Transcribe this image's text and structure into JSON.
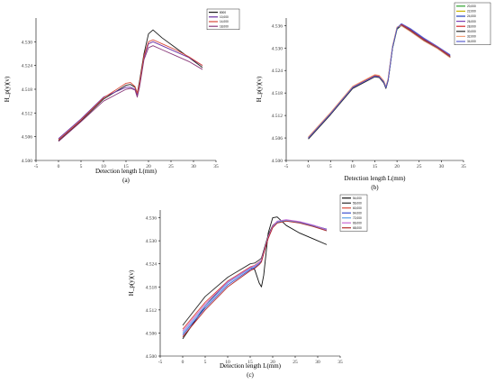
{
  "chart_data": [
    {
      "type": "line",
      "caption": "(a)",
      "xlabel": "Detection length L(mm)",
      "ylabel": "H_p(y)(v)",
      "xlim": [
        -5,
        35
      ],
      "ylim": [
        4.5,
        4.536
      ],
      "xticks": [
        "-5",
        "0",
        "5",
        "10",
        "15",
        "20",
        "25",
        "30",
        "35"
      ],
      "yticks": [
        "4.500",
        "4.506",
        "4.512",
        "4.518",
        "4.524",
        "4.530"
      ],
      "series": [
        {
          "name": "8000",
          "color": "#1a1a1a",
          "x": [
            0,
            5,
            10,
            15,
            16,
            17,
            17.5,
            18,
            19,
            20,
            21,
            23,
            26,
            29,
            32
          ],
          "y": [
            4.505,
            4.51,
            4.5155,
            4.519,
            4.5192,
            4.5185,
            4.517,
            4.52,
            4.527,
            4.532,
            4.533,
            4.531,
            4.5285,
            4.526,
            4.5235
          ]
        },
        {
          "name": "10,000",
          "color": "#6b2fa3",
          "x": [
            0,
            5,
            10,
            15,
            16,
            17,
            17.5,
            18,
            19,
            20,
            21,
            23,
            26,
            29,
            32
          ],
          "y": [
            4.5055,
            4.5105,
            4.516,
            4.5185,
            4.5185,
            4.518,
            4.5165,
            4.519,
            4.526,
            4.5295,
            4.53,
            4.529,
            4.5275,
            4.526,
            4.524
          ]
        },
        {
          "name": "14,000",
          "color": "#d94a3a",
          "x": [
            0,
            5,
            10,
            15,
            16,
            17,
            17.5,
            18,
            19,
            20,
            21,
            23,
            26,
            29,
            32
          ],
          "y": [
            4.5052,
            4.5102,
            4.5158,
            4.5195,
            4.5197,
            4.5187,
            4.517,
            4.5195,
            4.5265,
            4.53,
            4.5305,
            4.5295,
            4.528,
            4.5262,
            4.524
          ]
        },
        {
          "name": "18,000",
          "color": "#8a3a7a",
          "x": [
            0,
            5,
            10,
            15,
            16,
            17,
            17.5,
            18,
            19,
            20,
            21,
            23,
            26,
            29,
            32
          ],
          "y": [
            4.5048,
            4.5098,
            4.515,
            4.518,
            4.5182,
            4.5178,
            4.516,
            4.5185,
            4.5255,
            4.5285,
            4.529,
            4.528,
            4.5265,
            4.525,
            4.523
          ]
        }
      ]
    },
    {
      "type": "line",
      "caption": "(b)",
      "xlabel": "Detection length L(mm)",
      "ylabel": "H_p(y)(v)",
      "xlim": [
        -5,
        35
      ],
      "ylim": [
        4.5,
        4.538
      ],
      "xticks": [
        "-5",
        "0",
        "5",
        "10",
        "15",
        "20",
        "25",
        "30",
        "35"
      ],
      "yticks": [
        "4.500",
        "4.506",
        "4.512",
        "4.518",
        "4.524",
        "4.530",
        "4.536"
      ],
      "series": [
        {
          "name": "20,000",
          "color": "#2ca02c",
          "x": [
            0,
            5,
            10,
            15,
            16,
            17,
            17.5,
            18,
            19,
            20,
            21,
            23,
            26,
            29,
            32
          ],
          "y": [
            4.506,
            4.5125,
            4.5195,
            4.5225,
            4.5223,
            4.521,
            4.5195,
            4.5215,
            4.53,
            4.535,
            4.536,
            4.5345,
            4.532,
            4.53,
            4.5275
          ]
        },
        {
          "name": "22,000",
          "color": "#c8b400",
          "x": [
            0,
            5,
            10,
            15,
            16,
            17,
            17.5,
            18,
            19,
            20,
            21,
            23,
            26,
            29,
            32
          ],
          "y": [
            4.5062,
            4.5127,
            4.5197,
            4.5228,
            4.5226,
            4.5212,
            4.5197,
            4.5218,
            4.5305,
            4.5355,
            4.5362,
            4.5347,
            4.5322,
            4.5302,
            4.5277
          ]
        },
        {
          "name": "24,000",
          "color": "#1f3fbf",
          "x": [
            0,
            5,
            10,
            15,
            16,
            17,
            17.5,
            18,
            19,
            20,
            21,
            23,
            26,
            29,
            32
          ],
          "y": [
            4.5058,
            4.5123,
            4.5193,
            4.5224,
            4.5222,
            4.5208,
            4.5193,
            4.5214,
            4.5302,
            4.5352,
            4.5364,
            4.535,
            4.5325,
            4.5303,
            4.528
          ]
        },
        {
          "name": "26,000",
          "color": "#7b3fb5",
          "x": [
            0,
            5,
            10,
            15,
            16,
            17,
            17.5,
            18,
            19,
            20,
            21,
            23,
            26,
            29,
            32
          ],
          "y": [
            4.5059,
            4.5124,
            4.5194,
            4.5226,
            4.5224,
            4.5209,
            4.5194,
            4.5216,
            4.5303,
            4.5353,
            4.5361,
            4.5346,
            4.5321,
            4.5301,
            4.5276
          ]
        },
        {
          "name": "28,000",
          "color": "#d62728",
          "x": [
            0,
            5,
            10,
            15,
            16,
            17,
            17.5,
            18,
            19,
            20,
            21,
            23,
            26,
            29,
            32
          ],
          "y": [
            4.5061,
            4.5126,
            4.5196,
            4.5227,
            4.5225,
            4.5211,
            4.5196,
            4.5217,
            4.5304,
            4.5354,
            4.5363,
            4.5348,
            4.5323,
            4.5303,
            4.5278
          ]
        },
        {
          "name": "30,000",
          "color": "#2b2b2b",
          "x": [
            0,
            5,
            10,
            15,
            16,
            17,
            17.5,
            18,
            19,
            20,
            21,
            23,
            26,
            29,
            32
          ],
          "y": [
            4.5057,
            4.5122,
            4.5192,
            4.5223,
            4.5221,
            4.5207,
            4.5192,
            4.5213,
            4.5301,
            4.5351,
            4.536,
            4.5345,
            4.532,
            4.53,
            4.5275
          ]
        },
        {
          "name": "32,000",
          "color": "#f2a07a",
          "x": [
            0,
            5,
            10,
            15,
            16,
            17,
            17.5,
            18,
            19,
            20,
            21,
            23,
            26,
            29,
            32
          ],
          "y": [
            4.5063,
            4.5128,
            4.5198,
            4.5229,
            4.5227,
            4.5213,
            4.5198,
            4.5219,
            4.5306,
            4.5356,
            4.5359,
            4.5344,
            4.5319,
            4.5299,
            4.5274
          ]
        },
        {
          "name": "34,000",
          "color": "#5a5fd0",
          "x": [
            0,
            5,
            10,
            15,
            16,
            17,
            17.5,
            18,
            19,
            20,
            21,
            23,
            26,
            29,
            32
          ],
          "y": [
            4.506,
            4.5125,
            4.5195,
            4.5225,
            4.5223,
            4.521,
            4.5195,
            4.5215,
            4.5303,
            4.5353,
            4.5365,
            4.5352,
            4.5327,
            4.5305,
            4.5282
          ]
        }
      ]
    },
    {
      "type": "line",
      "caption": "(c)",
      "xlabel": "Detection length L(mm)",
      "ylabel": "H_p(y)(v)",
      "xlim": [
        -5,
        35
      ],
      "ylim": [
        4.5,
        4.538
      ],
      "xticks": [
        "-5",
        "0",
        "5",
        "10",
        "15",
        "20",
        "25",
        "30",
        "35"
      ],
      "yticks": [
        "4.500",
        "4.506",
        "4.512",
        "4.518",
        "4.524",
        "4.530",
        "4.536"
      ],
      "series": [
        {
          "name": "54,000",
          "color": "#111111",
          "x": [
            0,
            5,
            10,
            15,
            16,
            17,
            17.5,
            18,
            19,
            20,
            21,
            23,
            26,
            29,
            32
          ],
          "y": [
            4.5045,
            4.513,
            4.5195,
            4.523,
            4.5225,
            4.519,
            4.518,
            4.521,
            4.532,
            4.536,
            4.5362,
            4.534,
            4.532,
            4.5305,
            4.529
          ]
        },
        {
          "name": "56,000",
          "color": "#2a2a2a",
          "x": [
            0,
            5,
            10,
            15,
            16,
            17,
            17.5,
            18,
            19,
            20,
            21,
            23,
            26,
            29,
            32
          ],
          "y": [
            4.508,
            4.5155,
            4.5205,
            4.524,
            4.5242,
            4.525,
            4.5255,
            4.5275,
            4.5315,
            4.534,
            4.535,
            4.5352,
            4.5347,
            4.534,
            4.533
          ]
        },
        {
          "name": "60,000",
          "color": "#d94a3a",
          "x": [
            0,
            5,
            10,
            15,
            16,
            17,
            17.5,
            18,
            19,
            20,
            21,
            23,
            26,
            29,
            32
          ],
          "y": [
            4.507,
            4.514,
            4.5195,
            4.5232,
            4.5236,
            4.5245,
            4.525,
            4.527,
            4.531,
            4.5338,
            4.535,
            4.5354,
            4.5349,
            4.534,
            4.5328
          ]
        },
        {
          "name": "64,000",
          "color": "#3a4fd0",
          "x": [
            0,
            5,
            10,
            15,
            16,
            17,
            17.5,
            18,
            19,
            20,
            21,
            23,
            26,
            29,
            32
          ],
          "y": [
            4.5055,
            4.5125,
            4.5185,
            4.5225,
            4.523,
            4.524,
            4.5247,
            4.5268,
            4.5308,
            4.5336,
            4.5348,
            4.5352,
            4.5348,
            4.534,
            4.533
          ]
        },
        {
          "name": "72,000",
          "color": "#5aa0e6",
          "x": [
            0,
            5,
            10,
            15,
            16,
            17,
            17.5,
            18,
            19,
            20,
            21,
            23,
            26,
            29,
            32
          ],
          "y": [
            4.506,
            4.513,
            4.519,
            4.5228,
            4.5233,
            4.5242,
            4.5249,
            4.5269,
            4.5309,
            4.5337,
            4.5349,
            4.5353,
            4.5347,
            4.5338,
            4.5327
          ]
        },
        {
          "name": "66,000",
          "color": "#c86ad6",
          "x": [
            0,
            5,
            10,
            15,
            16,
            17,
            17.5,
            18,
            19,
            20,
            21,
            23,
            26,
            29,
            32
          ],
          "y": [
            4.5065,
            4.5135,
            4.5193,
            4.523,
            4.5235,
            4.5244,
            4.525,
            4.527,
            4.531,
            4.5338,
            4.5351,
            4.5355,
            4.535,
            4.5341,
            4.5329
          ]
        },
        {
          "name": "68,000",
          "color": "#b02a2a",
          "x": [
            0,
            5,
            10,
            15,
            16,
            17,
            17.5,
            18,
            19,
            20,
            21,
            23,
            26,
            29,
            32
          ],
          "y": [
            4.505,
            4.512,
            4.518,
            4.5222,
            4.5228,
            4.5238,
            4.5245,
            4.5266,
            4.5306,
            4.5334,
            4.5346,
            4.5351,
            4.5346,
            4.5337,
            4.5326
          ]
        }
      ]
    }
  ]
}
